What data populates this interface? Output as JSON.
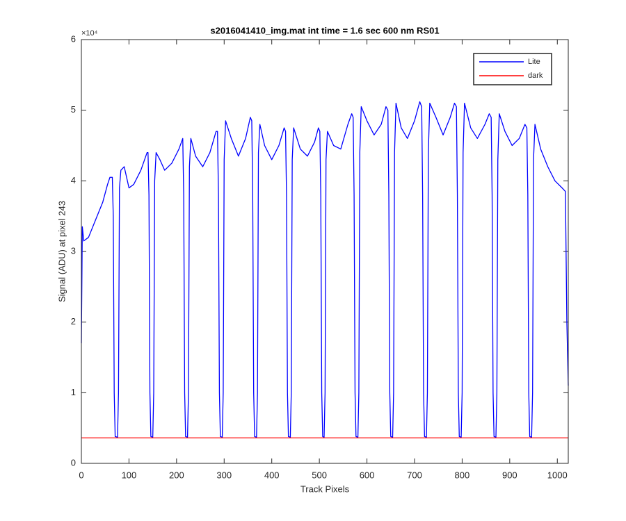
{
  "chart_data": {
    "type": "line",
    "title": "s2016041410_img.mat int time = 1.6 sec  600 nm RS01",
    "x_label": "Track Pixels",
    "y_label": "Signal (ADU) at pixel 243",
    "y_exponent_label": "×10⁴",
    "xlim": [
      0,
      1023
    ],
    "ylim": [
      0,
      6
    ],
    "xticks": [
      0,
      100,
      200,
      300,
      400,
      500,
      600,
      700,
      800,
      900,
      1000
    ],
    "yticks": [
      0,
      1,
      2,
      3,
      4,
      5,
      6
    ],
    "grid": false,
    "legend": "top-right",
    "series": [
      {
        "name": "Lite",
        "color": "#0000ff",
        "x": [
          0,
          2,
          5,
          15,
          30,
          45,
          55,
          60,
          65,
          67,
          69,
          71,
          76,
          78,
          80,
          83,
          90,
          100,
          110,
          125,
          138,
          140,
          142,
          144,
          146,
          150,
          152,
          154,
          157,
          165,
          175,
          190,
          205,
          213,
          215,
          217,
          219,
          223,
          225,
          227,
          230,
          240,
          255,
          270,
          283,
          286,
          288,
          290,
          292,
          296,
          298,
          300,
          303,
          315,
          330,
          345,
          355,
          358,
          360,
          362,
          364,
          368,
          370,
          372,
          375,
          385,
          400,
          415,
          426,
          429,
          431,
          433,
          435,
          439,
          441,
          443,
          446,
          460,
          475,
          490,
          498,
          501,
          503,
          505,
          507,
          510,
          512,
          514,
          517,
          530,
          545,
          560,
          568,
          571,
          573,
          575,
          577,
          581,
          583,
          585,
          588,
          600,
          615,
          630,
          640,
          644,
          646,
          648,
          650,
          654,
          656,
          658,
          661,
          672,
          685,
          700,
          711,
          715,
          717,
          719,
          721,
          725,
          727,
          729,
          732,
          745,
          760,
          775,
          784,
          788,
          790,
          792,
          794,
          798,
          800,
          802,
          805,
          818,
          832,
          848,
          857,
          861,
          863,
          865,
          867,
          871,
          873,
          875,
          878,
          890,
          905,
          920,
          932,
          936,
          938,
          940,
          942,
          946,
          948,
          950,
          953,
          965,
          980,
          995,
          1010,
          1017,
          1020,
          1023
        ],
        "values": [
          1.7,
          3.35,
          3.15,
          3.2,
          3.45,
          3.7,
          3.95,
          4.05,
          4.05,
          3.5,
          1.0,
          0.38,
          0.37,
          1.0,
          3.9,
          4.15,
          4.2,
          3.9,
          3.95,
          4.15,
          4.4,
          4.4,
          3.8,
          1.0,
          0.38,
          0.37,
          1.0,
          4.0,
          4.4,
          4.3,
          4.15,
          4.25,
          4.45,
          4.6,
          3.8,
          1.0,
          0.38,
          0.37,
          1.0,
          4.2,
          4.6,
          4.35,
          4.2,
          4.4,
          4.7,
          4.7,
          3.8,
          1.0,
          0.38,
          0.37,
          1.0,
          4.3,
          4.85,
          4.6,
          4.35,
          4.6,
          4.9,
          4.85,
          3.8,
          1.0,
          0.38,
          0.37,
          1.0,
          4.4,
          4.8,
          4.5,
          4.3,
          4.5,
          4.75,
          4.7,
          3.8,
          1.0,
          0.38,
          0.37,
          1.0,
          4.3,
          4.75,
          4.45,
          4.35,
          4.55,
          4.75,
          4.7,
          3.8,
          1.0,
          0.38,
          0.37,
          1.0,
          4.3,
          4.7,
          4.5,
          4.45,
          4.8,
          4.95,
          4.9,
          3.8,
          1.0,
          0.38,
          0.37,
          1.0,
          4.4,
          5.05,
          4.85,
          4.65,
          4.8,
          5.05,
          5.0,
          3.8,
          1.0,
          0.38,
          0.37,
          1.0,
          4.4,
          5.1,
          4.75,
          4.6,
          4.85,
          5.12,
          5.05,
          3.8,
          1.0,
          0.38,
          0.37,
          1.0,
          4.4,
          5.1,
          4.9,
          4.65,
          4.9,
          5.1,
          5.05,
          3.8,
          1.0,
          0.38,
          0.37,
          1.0,
          4.4,
          5.1,
          4.75,
          4.6,
          4.8,
          4.95,
          4.9,
          3.8,
          1.0,
          0.38,
          0.37,
          1.0,
          4.3,
          4.95,
          4.7,
          4.5,
          4.6,
          4.8,
          4.75,
          3.8,
          1.0,
          0.38,
          0.37,
          1.0,
          4.3,
          4.8,
          4.45,
          4.2,
          4.0,
          3.9,
          3.85,
          2.0,
          1.1
        ]
      },
      {
        "name": "dark",
        "color": "#ff0000",
        "x": [
          0,
          1023
        ],
        "values": [
          0.36,
          0.36
        ]
      }
    ]
  }
}
